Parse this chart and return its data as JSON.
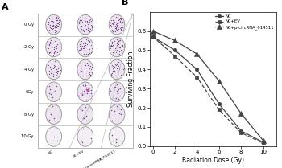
{
  "panel_B": {
    "x": [
      0,
      2,
      4,
      6,
      8,
      10
    ],
    "NC": [
      0.57,
      0.5,
      0.4,
      0.22,
      0.08,
      0.02
    ],
    "NC_EV": [
      0.57,
      0.47,
      0.36,
      0.19,
      0.07,
      0.015
    ],
    "NC_p_circRNA": [
      0.6,
      0.55,
      0.48,
      0.34,
      0.17,
      0.03
    ],
    "xlabel": "Radiation Dose (Gy)",
    "ylabel": "Surviving Fraction",
    "ylim": [
      0,
      0.7
    ],
    "yticks": [
      0,
      0.1,
      0.2,
      0.3,
      0.4,
      0.5,
      0.6
    ],
    "xticks": [
      0,
      2,
      4,
      6,
      8,
      10
    ],
    "legend": [
      "NC",
      "NC+EV",
      "NC+p-circRNA_014511"
    ],
    "line_color": "#444444",
    "title": "B"
  },
  "panel_A": {
    "title": "A",
    "rows": [
      "0 Gy",
      "2 Gy",
      "4 Gy",
      "6Gy",
      "8 Gy",
      "10 Gy"
    ],
    "cols": [
      "NC",
      "SC+EV",
      "SC+p-circRNA_014511"
    ],
    "bg_color": "#f0e8f0",
    "plate_fill": "#ede0ee",
    "border_color": "#999999",
    "dot_color": "#7a4a8a",
    "grid_color": "#aaaaaa"
  }
}
